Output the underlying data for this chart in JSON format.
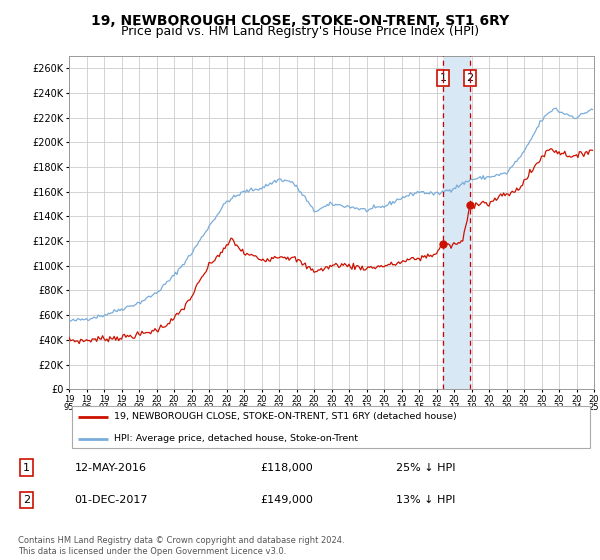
{
  "title": "19, NEWBOROUGH CLOSE, STOKE-ON-TRENT, ST1 6RY",
  "subtitle": "Price paid vs. HM Land Registry's House Price Index (HPI)",
  "ylabel_ticks": [
    "£0",
    "£20K",
    "£40K",
    "£60K",
    "£80K",
    "£100K",
    "£120K",
    "£140K",
    "£160K",
    "£180K",
    "£200K",
    "£220K",
    "£240K",
    "£260K"
  ],
  "ytick_vals": [
    0,
    20000,
    40000,
    60000,
    80000,
    100000,
    120000,
    140000,
    160000,
    180000,
    200000,
    220000,
    240000,
    260000
  ],
  "ylim": [
    0,
    270000
  ],
  "xlim": [
    1995,
    2025
  ],
  "legend1": "19, NEWBOROUGH CLOSE, STOKE-ON-TRENT, ST1 6RY (detached house)",
  "legend2": "HPI: Average price, detached house, Stoke-on-Trent",
  "marker1_date": 2016.37,
  "marker1_value": 118000,
  "marker1_label": "1",
  "marker2_date": 2017.92,
  "marker2_value": 149000,
  "marker2_label": "2",
  "anno1": "12-MAY-2016",
  "anno1_price": "£118,000",
  "anno1_pct": "25% ↓ HPI",
  "anno2": "01-DEC-2017",
  "anno2_price": "£149,000",
  "anno2_pct": "13% ↓ HPI",
  "footer": "Contains HM Land Registry data © Crown copyright and database right 2024.\nThis data is licensed under the Open Government Licence v3.0.",
  "hpi_color": "#7aadda",
  "price_color": "#cc1100",
  "vline_color": "#cc0000",
  "shade_color": "#d8e8f5",
  "background_color": "#ffffff",
  "grid_color": "#cccccc",
  "title_fontsize": 10,
  "subtitle_fontsize": 9,
  "tick_fontsize": 7
}
